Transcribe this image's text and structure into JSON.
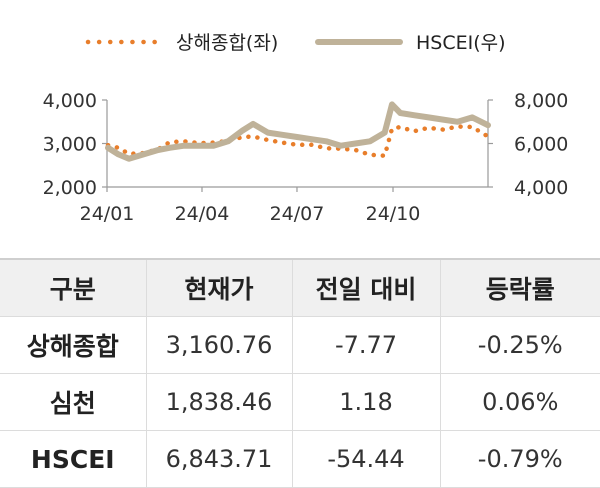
{
  "chart_data": {
    "type": "line",
    "x_ticks": [
      "24/01",
      "24/04",
      "24/07",
      "24/10"
    ],
    "x_domain": [
      "2024-01-01",
      "2024-12-31"
    ],
    "y_left": {
      "ticks": [
        "2,000",
        "3,000",
        "4,000"
      ],
      "range": [
        2000,
        4000
      ]
    },
    "y_right": {
      "ticks": [
        "4,000",
        "6,000",
        "8,000"
      ],
      "range": [
        4000,
        8000
      ]
    },
    "series": [
      {
        "name": "상해종합(좌)",
        "axis": "left",
        "color": "#e87e2b",
        "style": "dotted",
        "x": [
          "2024-01-02",
          "2024-01-12",
          "2024-01-22",
          "2024-02-05",
          "2024-02-19",
          "2024-03-01",
          "2024-03-15",
          "2024-03-29",
          "2024-04-12",
          "2024-04-26",
          "2024-05-10",
          "2024-05-20",
          "2024-06-03",
          "2024-06-17",
          "2024-07-01",
          "2024-07-15",
          "2024-07-29",
          "2024-08-12",
          "2024-08-26",
          "2024-09-09",
          "2024-09-23",
          "2024-09-30",
          "2024-10-08",
          "2024-10-21",
          "2024-11-04",
          "2024-11-18",
          "2024-12-02",
          "2024-12-16",
          "2024-12-31"
        ],
        "y": [
          2960,
          2900,
          2760,
          2780,
          2870,
          3030,
          3050,
          3010,
          3020,
          3060,
          3150,
          3160,
          3080,
          3020,
          2970,
          2970,
          2890,
          2880,
          2850,
          2740,
          2720,
          3340,
          3380,
          3280,
          3360,
          3320,
          3390,
          3380,
          3160
        ]
      },
      {
        "name": "HSCEI(우)",
        "axis": "right",
        "color": "#bfb299",
        "style": "solid",
        "x": [
          "2024-01-02",
          "2024-01-12",
          "2024-01-22",
          "2024-02-05",
          "2024-02-19",
          "2024-03-01",
          "2024-03-15",
          "2024-03-29",
          "2024-04-12",
          "2024-04-26",
          "2024-05-10",
          "2024-05-20",
          "2024-06-03",
          "2024-06-17",
          "2024-07-01",
          "2024-07-15",
          "2024-07-29",
          "2024-08-12",
          "2024-08-26",
          "2024-09-09",
          "2024-09-23",
          "2024-09-30",
          "2024-10-08",
          "2024-10-21",
          "2024-11-04",
          "2024-11-18",
          "2024-12-02",
          "2024-12-16",
          "2024-12-31"
        ],
        "y": [
          5800,
          5500,
          5300,
          5500,
          5700,
          5800,
          5900,
          5900,
          5900,
          6100,
          6600,
          6900,
          6500,
          6400,
          6300,
          6200,
          6100,
          5900,
          6000,
          6100,
          6500,
          7800,
          7400,
          7300,
          7200,
          7100,
          7000,
          7200,
          6840
        ]
      }
    ]
  },
  "table": {
    "headers": [
      "구분",
      "현재가",
      "전일 대비",
      "등락률"
    ],
    "rows": [
      [
        "상해종합",
        "3,160.76",
        "-7.77",
        "-0.25%"
      ],
      [
        "심천",
        "1,838.46",
        "1.18",
        "0.06%"
      ],
      [
        "HSCEI",
        "6,843.71",
        "-54.44",
        "-0.79%"
      ]
    ]
  }
}
